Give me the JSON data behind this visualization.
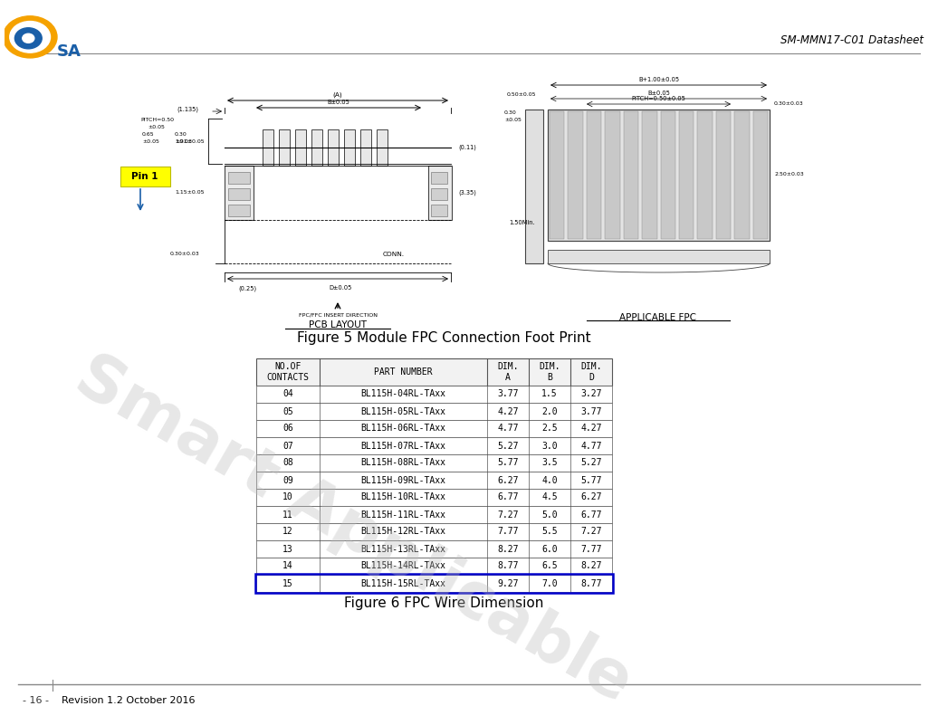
{
  "title_right": "SM-MMN17-C01 Datasheet",
  "fig5_caption": "Figure 5 Module FPC Connection Foot Print",
  "fig6_caption": "Figure 6 FPC Wire Dimension",
  "footer_text": "Revision 1.2 October 2016",
  "footer_page": "- 16 -",
  "watermark_line1": "Smart App",
  "watermark_line2": "licable",
  "table_headers": [
    "NO.OF\nCONTACTS",
    "PART NUMBER",
    "DIM.\nA",
    "DIM.\nB",
    "DIM.\nD"
  ],
  "table_data": [
    [
      "04",
      "BL115H-04RL-TAxx",
      "3.77",
      "1.5",
      "3.27"
    ],
    [
      "05",
      "BL115H-05RL-TAxx",
      "4.27",
      "2.0",
      "3.77"
    ],
    [
      "06",
      "BL115H-06RL-TAxx",
      "4.77",
      "2.5",
      "4.27"
    ],
    [
      "07",
      "BL115H-07RL-TAxx",
      "5.27",
      "3.0",
      "4.77"
    ],
    [
      "08",
      "BL115H-08RL-TAxx",
      "5.77",
      "3.5",
      "5.27"
    ],
    [
      "09",
      "BL115H-09RL-TAxx",
      "6.27",
      "4.0",
      "5.77"
    ],
    [
      "10",
      "BL115H-10RL-TAxx",
      "6.77",
      "4.5",
      "6.27"
    ],
    [
      "11",
      "BL115H-11RL-TAxx",
      "7.27",
      "5.0",
      "6.77"
    ],
    [
      "12",
      "BL115H-12RL-TAxx",
      "7.77",
      "5.5",
      "7.27"
    ],
    [
      "13",
      "BL115H-13RL-TAxx",
      "8.27",
      "6.0",
      "7.77"
    ],
    [
      "14",
      "BL115H-14RL-TAxx",
      "8.77",
      "6.5",
      "8.27"
    ],
    [
      "15",
      "BL115H-15RL-TAxx",
      "9.27",
      "7.0",
      "8.77"
    ]
  ],
  "highlight_row": 11,
  "bg_color": "#ffffff",
  "table_border_color": "#555555",
  "highlight_border_color": "#0000cc",
  "text_color": "#000000",
  "watermark_color": "#bbbbbb",
  "dim_font_size": 4.8,
  "header_font_size": 7.0,
  "body_font_size": 7.0,
  "caption_font_size": 11,
  "title_font_size": 8.5
}
